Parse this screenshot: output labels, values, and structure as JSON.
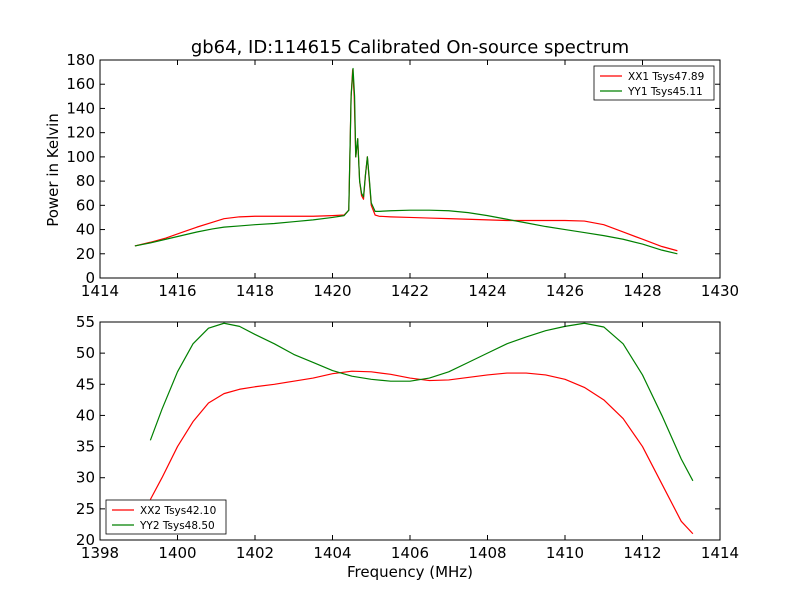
{
  "title": "gb64, ID:114615 Calibrated On-source spectrum",
  "ylabel": "Power in Kelvin",
  "xlabel": "Frequency (MHz)",
  "chart_data": [
    {
      "type": "line",
      "title": "gb64, ID:114615 Calibrated On-source spectrum",
      "xlabel": "",
      "ylabel": "Power in Kelvin",
      "xlim": [
        1414,
        1430
      ],
      "ylim": [
        0,
        180
      ],
      "x_ticks": [
        1414,
        1416,
        1418,
        1420,
        1422,
        1424,
        1426,
        1428,
        1430
      ],
      "y_ticks": [
        0,
        20,
        40,
        60,
        80,
        100,
        120,
        140,
        160,
        180
      ],
      "grid": false,
      "legend_position": "top-right",
      "series": [
        {
          "name": "XX1 Tsys47.89",
          "color": "#ff0000",
          "points": [
            [
              1414.9,
              26.5
            ],
            [
              1415.3,
              29.5
            ],
            [
              1415.7,
              33
            ],
            [
              1416.1,
              37.5
            ],
            [
              1416.5,
              42
            ],
            [
              1416.9,
              46
            ],
            [
              1417.2,
              49
            ],
            [
              1417.6,
              50.5
            ],
            [
              1418.0,
              51
            ],
            [
              1418.5,
              51
            ],
            [
              1419.0,
              51
            ],
            [
              1419.5,
              51
            ],
            [
              1420.0,
              51.5
            ],
            [
              1420.3,
              52
            ],
            [
              1420.42,
              56
            ],
            [
              1420.48,
              150
            ],
            [
              1420.52,
              172
            ],
            [
              1420.56,
              150
            ],
            [
              1420.6,
              100
            ],
            [
              1420.65,
              115
            ],
            [
              1420.7,
              80
            ],
            [
              1420.75,
              68
            ],
            [
              1420.8,
              65
            ],
            [
              1420.85,
              85
            ],
            [
              1420.9,
              100
            ],
            [
              1420.95,
              80
            ],
            [
              1421.0,
              60
            ],
            [
              1421.1,
              52
            ],
            [
              1421.2,
              51
            ],
            [
              1421.5,
              50.5
            ],
            [
              1422.0,
              50
            ],
            [
              1422.5,
              49.5
            ],
            [
              1423.0,
              49
            ],
            [
              1423.5,
              48.5
            ],
            [
              1424.0,
              48
            ],
            [
              1424.5,
              47.5
            ],
            [
              1425.0,
              47.5
            ],
            [
              1425.5,
              47.5
            ],
            [
              1426.0,
              47.5
            ],
            [
              1426.5,
              47
            ],
            [
              1427.0,
              44
            ],
            [
              1427.5,
              38
            ],
            [
              1428.0,
              32
            ],
            [
              1428.5,
              26
            ],
            [
              1428.9,
              22.5
            ]
          ]
        },
        {
          "name": "YY1 Tsys45.11",
          "color": "#008000",
          "points": [
            [
              1414.9,
              26.5
            ],
            [
              1415.3,
              29
            ],
            [
              1415.7,
              32
            ],
            [
              1416.1,
              35
            ],
            [
              1416.5,
              38
            ],
            [
              1416.9,
              40.5
            ],
            [
              1417.2,
              42
            ],
            [
              1417.6,
              43
            ],
            [
              1418.0,
              44
            ],
            [
              1418.5,
              45
            ],
            [
              1419.0,
              46.5
            ],
            [
              1419.5,
              48
            ],
            [
              1420.0,
              50
            ],
            [
              1420.3,
              51.5
            ],
            [
              1420.42,
              56
            ],
            [
              1420.48,
              150
            ],
            [
              1420.53,
              173
            ],
            [
              1420.57,
              150
            ],
            [
              1420.6,
              100
            ],
            [
              1420.65,
              115
            ],
            [
              1420.7,
              80
            ],
            [
              1420.75,
              70
            ],
            [
              1420.8,
              67
            ],
            [
              1420.85,
              85
            ],
            [
              1420.9,
              100
            ],
            [
              1420.95,
              82
            ],
            [
              1421.0,
              62
            ],
            [
              1421.1,
              55
            ],
            [
              1421.2,
              55
            ],
            [
              1421.5,
              55.5
            ],
            [
              1422.0,
              56
            ],
            [
              1422.5,
              56
            ],
            [
              1423.0,
              55.5
            ],
            [
              1423.5,
              54
            ],
            [
              1424.0,
              51.5
            ],
            [
              1424.5,
              48.5
            ],
            [
              1425.0,
              45.5
            ],
            [
              1425.5,
              42.5
            ],
            [
              1426.0,
              40
            ],
            [
              1426.5,
              37.5
            ],
            [
              1427.0,
              35
            ],
            [
              1427.5,
              32
            ],
            [
              1428.0,
              28
            ],
            [
              1428.5,
              23
            ],
            [
              1428.9,
              20
            ]
          ]
        }
      ]
    },
    {
      "type": "line",
      "title": "",
      "xlabel": "Frequency (MHz)",
      "ylabel": "",
      "xlim": [
        1398,
        1414
      ],
      "ylim": [
        20,
        55
      ],
      "x_ticks": [
        1398,
        1400,
        1402,
        1404,
        1406,
        1408,
        1410,
        1412,
        1414
      ],
      "y_ticks": [
        20,
        25,
        30,
        35,
        40,
        45,
        50,
        55
      ],
      "grid": false,
      "legend_position": "bottom-left",
      "series": [
        {
          "name": "XX2 Tsys42.10",
          "color": "#ff0000",
          "points": [
            [
              1399.3,
              26.5
            ],
            [
              1399.6,
              30
            ],
            [
              1400.0,
              35
            ],
            [
              1400.4,
              39
            ],
            [
              1400.8,
              42
            ],
            [
              1401.2,
              43.5
            ],
            [
              1401.6,
              44.2
            ],
            [
              1402.0,
              44.6
            ],
            [
              1402.5,
              45
            ],
            [
              1403.0,
              45.5
            ],
            [
              1403.5,
              46
            ],
            [
              1404.0,
              46.7
            ],
            [
              1404.5,
              47.1
            ],
            [
              1405.0,
              47
            ],
            [
              1405.5,
              46.6
            ],
            [
              1406.0,
              46
            ],
            [
              1406.5,
              45.6
            ],
            [
              1407.0,
              45.7
            ],
            [
              1407.5,
              46.1
            ],
            [
              1408.0,
              46.5
            ],
            [
              1408.5,
              46.8
            ],
            [
              1409.0,
              46.8
            ],
            [
              1409.5,
              46.5
            ],
            [
              1410.0,
              45.8
            ],
            [
              1410.5,
              44.5
            ],
            [
              1411.0,
              42.5
            ],
            [
              1411.5,
              39.5
            ],
            [
              1412.0,
              35
            ],
            [
              1412.5,
              29
            ],
            [
              1413.0,
              23
            ],
            [
              1413.3,
              21
            ]
          ]
        },
        {
          "name": "YY2 Tsys48.50",
          "color": "#008000",
          "points": [
            [
              1399.3,
              36
            ],
            [
              1399.6,
              41
            ],
            [
              1400.0,
              47
            ],
            [
              1400.4,
              51.5
            ],
            [
              1400.8,
              54
            ],
            [
              1401.2,
              54.8
            ],
            [
              1401.6,
              54.3
            ],
            [
              1402.0,
              53
            ],
            [
              1402.5,
              51.5
            ],
            [
              1403.0,
              49.8
            ],
            [
              1403.5,
              48.5
            ],
            [
              1404.0,
              47.2
            ],
            [
              1404.5,
              46.3
            ],
            [
              1405.0,
              45.8
            ],
            [
              1405.5,
              45.5
            ],
            [
              1406.0,
              45.5
            ],
            [
              1406.5,
              46
            ],
            [
              1407.0,
              47
            ],
            [
              1407.5,
              48.5
            ],
            [
              1408.0,
              50
            ],
            [
              1408.5,
              51.5
            ],
            [
              1409.0,
              52.6
            ],
            [
              1409.5,
              53.6
            ],
            [
              1410.0,
              54.3
            ],
            [
              1410.5,
              54.8
            ],
            [
              1411.0,
              54.2
            ],
            [
              1411.5,
              51.5
            ],
            [
              1412.0,
              46.5
            ],
            [
              1412.5,
              40
            ],
            [
              1413.0,
              33
            ],
            [
              1413.3,
              29.5
            ]
          ]
        }
      ]
    }
  ]
}
